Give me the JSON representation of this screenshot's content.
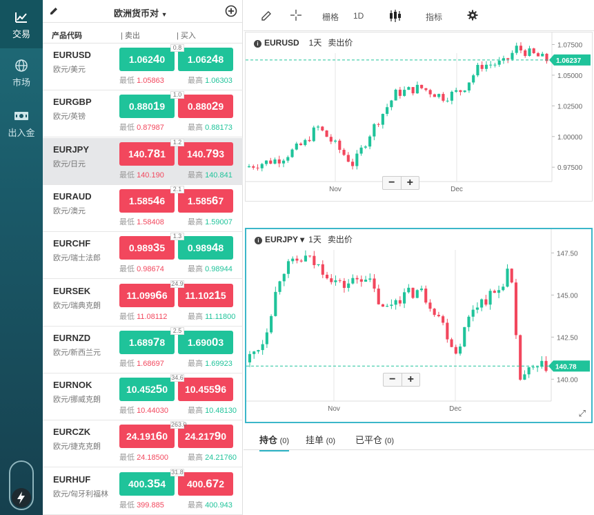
{
  "nav": [
    {
      "label": "交易",
      "icon": "chart-icon"
    },
    {
      "label": "市场",
      "icon": "globe-icon"
    },
    {
      "label": "出入金",
      "icon": "cash-icon"
    }
  ],
  "list": {
    "title": "欧洲货币对",
    "col_code": "产品代码",
    "col_sell": "| 卖出",
    "col_buy": "| 买入",
    "low_label": "最低",
    "high_label": "最高"
  },
  "pairs": [
    {
      "sym": "EURUSD",
      "desc": "欧元/美元",
      "bid_a": "1.062",
      "bid_b": "4",
      "bid_c": "0",
      "ask_a": "1.062",
      "ask_b": "4",
      "ask_c": "8",
      "spread": "0.8",
      "low": "1.05863",
      "high": "1.06303",
      "bc": "g",
      "ac": "g"
    },
    {
      "sym": "EURGBP",
      "desc": "欧元/英镑",
      "bid_a": "0.880",
      "bid_b": "1",
      "bid_c": "9",
      "ask_a": "0.880",
      "ask_b": "2",
      "ask_c": "9",
      "spread": "1.0",
      "low": "0.87987",
      "high": "0.88173",
      "bc": "g",
      "ac": "r"
    },
    {
      "sym": "EURJPY",
      "desc": "欧元/日元",
      "bid_a": "140.",
      "bid_b": "78",
      "bid_c": "1",
      "ask_a": "140.",
      "ask_b": "79",
      "ask_c": "3",
      "spread": "1.2",
      "low": "140.190",
      "high": "140.841",
      "bc": "r",
      "ac": "r"
    },
    {
      "sym": "EURAUD",
      "desc": "欧元/澳元",
      "bid_a": "1.585",
      "bid_b": "4",
      "bid_c": "6",
      "ask_a": "1.585",
      "ask_b": "6",
      "ask_c": "7",
      "spread": "2.1",
      "low": "1.58408",
      "high": "1.59007",
      "bc": "r",
      "ac": "r"
    },
    {
      "sym": "EURCHF",
      "desc": "欧元/瑞士法郎",
      "bid_a": "0.989",
      "bid_b": "3",
      "bid_c": "5",
      "ask_a": "0.989",
      "ask_b": "4",
      "ask_c": "8",
      "spread": "1.3",
      "low": "0.98674",
      "high": "0.98944",
      "bc": "r",
      "ac": "g"
    },
    {
      "sym": "EURSEK",
      "desc": "欧元/瑞典克朗",
      "bid_a": "11.099",
      "bid_b": "6",
      "bid_c": "6",
      "ask_a": "11.102",
      "ask_b": "1",
      "ask_c": "5",
      "spread": "24.9",
      "low": "11.08112",
      "high": "11.11800",
      "bc": "r",
      "ac": "r"
    },
    {
      "sym": "EURNZD",
      "desc": "欧元/新西兰元",
      "bid_a": "1.689",
      "bid_b": "7",
      "bid_c": "8",
      "ask_a": "1.690",
      "ask_b": "0",
      "ask_c": "3",
      "spread": "2.5",
      "low": "1.68697",
      "high": "1.69923",
      "bc": "g",
      "ac": "g"
    },
    {
      "sym": "EURNOK",
      "desc": "欧元/挪威克朗",
      "bid_a": "10.452",
      "bid_b": "5",
      "bid_c": "0",
      "ask_a": "10.455",
      "ask_b": "9",
      "ask_c": "6",
      "spread": "34.6",
      "low": "10.44030",
      "high": "10.48130",
      "bc": "g",
      "ac": "r"
    },
    {
      "sym": "EURCZK",
      "desc": "欧元/捷克克朗",
      "bid_a": "24.191",
      "bid_b": "6",
      "bid_c": "0",
      "ask_a": "24.217",
      "ask_b": "9",
      "ask_c": "0",
      "spread": "263.0",
      "low": "24.18500",
      "high": "24.21760",
      "bc": "r",
      "ac": "r"
    },
    {
      "sym": "EURHUF",
      "desc": "欧元/匈牙利福林",
      "bid_a": "400.",
      "bid_b": "35",
      "bid_c": "4",
      "ask_a": "400.",
      "ask_b": "67",
      "ask_c": "2",
      "spread": "31.8",
      "low": "399.885",
      "high": "400.943",
      "bc": "g",
      "ac": "r"
    }
  ],
  "toolbar": {
    "grid": "栅格",
    "interval": "1D",
    "indicator": "指标"
  },
  "charts": [
    {
      "symbol": "EURUSD",
      "period": "1天",
      "price_type": "卖出价",
      "yticks": [
        "1.07500",
        "1.05000",
        "1.02500",
        "1.00000",
        "0.97500"
      ],
      "xticks": [
        "Nov",
        "Dec"
      ],
      "last": "1.06237",
      "ymin": 0.9633,
      "ymax": 1.0792,
      "y_lo": 0.963,
      "y_hi": 1.075,
      "up": "#1fc39a",
      "down": "#f2475d"
    },
    {
      "symbol": "EURJPY",
      "period": "1天",
      "price_type": "卖出价",
      "yticks": [
        "147.50",
        "145.00",
        "142.50",
        "140.00"
      ],
      "xticks": [
        "Nov",
        "Dec"
      ],
      "last": "140.78",
      "ymin": 138.7,
      "ymax": 148.5,
      "y_lo": 139.0,
      "y_hi": 147.8,
      "up": "#1fc39a",
      "down": "#f2475d"
    }
  ],
  "positions_tabs": [
    {
      "label": "持仓",
      "count": "(0)"
    },
    {
      "label": "挂单",
      "count": "(0)"
    },
    {
      "label": "已平仓",
      "count": "(0)"
    }
  ],
  "zoom": {
    "minus": "−",
    "plus": "+"
  }
}
